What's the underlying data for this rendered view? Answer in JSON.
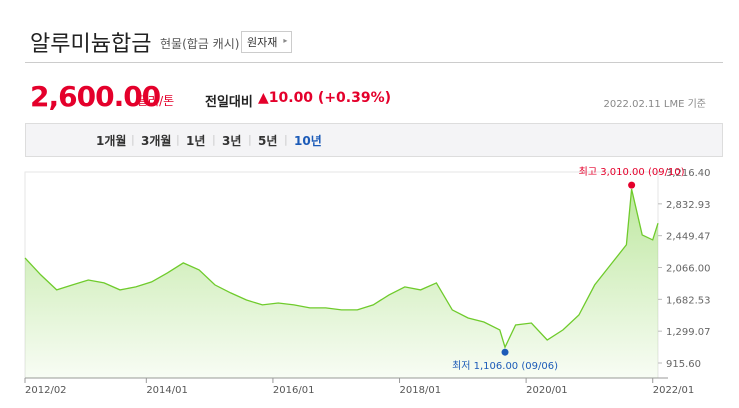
{
  "header": {
    "title": "알루미늄합금",
    "subtitle": "현물(합금 캐시)",
    "button": "원자재"
  },
  "price": {
    "value": "2,600.00",
    "unit": "달러/톤",
    "change_label": "전일대비",
    "change": "▲10.00 (+0.39%)",
    "date": "2022.02.11 LME 기준"
  },
  "tabs": [
    "1개월",
    "3개월",
    "1년",
    "3년",
    "5년",
    "10년"
  ],
  "active_tab": 5,
  "chart_data": {
    "type": "line",
    "color": "#6fcb2c",
    "x": [
      "2012/02",
      "2012/05",
      "2012/08",
      "2012/11",
      "2013/02",
      "2013/05",
      "2013/08",
      "2013/11",
      "2014/02",
      "2014/05",
      "2014/08",
      "2014/11",
      "2015/02",
      "2015/05",
      "2015/08",
      "2015/11",
      "2016/02",
      "2016/05",
      "2016/08",
      "2016/11",
      "2017/02",
      "2017/05",
      "2017/08",
      "2017/11",
      "2018/02",
      "2018/05",
      "2018/08",
      "2018/11",
      "2019/02",
      "2019/05",
      "2019/08",
      "2019/09",
      "2019/11",
      "2020/02",
      "2020/05",
      "2020/08",
      "2020/11",
      "2021/02",
      "2021/05",
      "2021/08",
      "2021/09",
      "2021/11",
      "2022/01",
      "2022/02"
    ],
    "values": [
      2182,
      1977,
      1796,
      1856,
      1916,
      1880,
      1796,
      1832,
      1892,
      2001,
      2121,
      2037,
      1856,
      1760,
      1675,
      1615,
      1639,
      1615,
      1579,
      1579,
      1555,
      1555,
      1615,
      1736,
      1832,
      1796,
      1880,
      1555,
      1458,
      1410,
      1314,
      1106,
      1374,
      1398,
      1193,
      1314,
      1494,
      1856,
      2097,
      2339,
      3010,
      2459,
      2399,
      2600
    ],
    "ylim": [
      735,
      3216.4
    ],
    "yticks": [
      {
        "value": 915.6,
        "label": "915.60"
      },
      {
        "value": 1299.07,
        "label": "1,299.07"
      },
      {
        "value": 1682.53,
        "label": "1,682.53"
      },
      {
        "value": 2066,
        "label": "2,066.00"
      },
      {
        "value": 2449.47,
        "label": "2,449.47"
      },
      {
        "value": 2832.93,
        "label": "2,832.93"
      },
      {
        "value": 3216.4,
        "label": "3,216.40"
      }
    ],
    "xlim": [
      "2012/02",
      "2022/02"
    ],
    "xticks": [
      "2012/02",
      "2014/01",
      "2016/01",
      "2018/01",
      "2020/01",
      "2022/01"
    ],
    "annotations": [
      {
        "text": "최고 3,010.00 (09/10)",
        "index": 40,
        "color": "#e4002b"
      },
      {
        "text": "최저 1,106.00 (09/06)",
        "index": 31,
        "color": "#1c5bb8"
      }
    ]
  }
}
